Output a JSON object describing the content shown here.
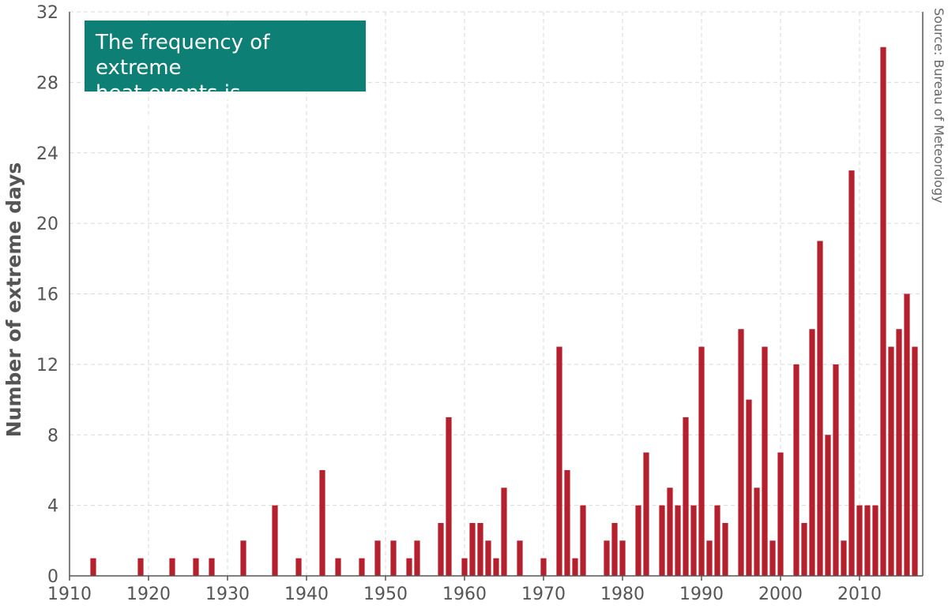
{
  "chart_data": {
    "type": "bar",
    "ylabel": "Number of extreme days",
    "xlabel": "",
    "ylim": [
      0,
      32
    ],
    "xlim": [
      1910,
      2017
    ],
    "y_ticks": [
      "0",
      "4",
      "8",
      "12",
      "16",
      "20",
      "24",
      "28",
      "32"
    ],
    "x_ticks": [
      "1910",
      "1920",
      "1930",
      "1940",
      "1950",
      "1960",
      "1970",
      "1980",
      "1990",
      "2000",
      "2010"
    ],
    "grid": true,
    "bar_color": "#b5202f",
    "callout": [
      "The frequency of extreme",
      "heat events is increasing."
    ],
    "callout_color": "#0e7f74",
    "source": "Source: Bureau of Meteorology",
    "points": [
      {
        "x": 1913,
        "y": 1
      },
      {
        "x": 1919,
        "y": 1
      },
      {
        "x": 1923,
        "y": 1
      },
      {
        "x": 1926,
        "y": 1
      },
      {
        "x": 1928,
        "y": 1
      },
      {
        "x": 1932,
        "y": 2
      },
      {
        "x": 1936,
        "y": 4
      },
      {
        "x": 1939,
        "y": 1
      },
      {
        "x": 1942,
        "y": 6
      },
      {
        "x": 1944,
        "y": 1
      },
      {
        "x": 1947,
        "y": 1
      },
      {
        "x": 1949,
        "y": 2
      },
      {
        "x": 1951,
        "y": 2
      },
      {
        "x": 1953,
        "y": 1
      },
      {
        "x": 1954,
        "y": 2
      },
      {
        "x": 1957,
        "y": 3
      },
      {
        "x": 1958,
        "y": 9
      },
      {
        "x": 1960,
        "y": 1
      },
      {
        "x": 1961,
        "y": 3
      },
      {
        "x": 1962,
        "y": 3
      },
      {
        "x": 1963,
        "y": 2
      },
      {
        "x": 1964,
        "y": 1
      },
      {
        "x": 1965,
        "y": 5
      },
      {
        "x": 1967,
        "y": 2
      },
      {
        "x": 1970,
        "y": 1
      },
      {
        "x": 1972,
        "y": 13
      },
      {
        "x": 1973,
        "y": 6
      },
      {
        "x": 1974,
        "y": 1
      },
      {
        "x": 1975,
        "y": 4
      },
      {
        "x": 1978,
        "y": 2
      },
      {
        "x": 1979,
        "y": 3
      },
      {
        "x": 1980,
        "y": 2
      },
      {
        "x": 1982,
        "y": 4
      },
      {
        "x": 1983,
        "y": 7
      },
      {
        "x": 1985,
        "y": 4
      },
      {
        "x": 1986,
        "y": 5
      },
      {
        "x": 1987,
        "y": 4
      },
      {
        "x": 1988,
        "y": 9
      },
      {
        "x": 1989,
        "y": 4
      },
      {
        "x": 1990,
        "y": 13
      },
      {
        "x": 1991,
        "y": 2
      },
      {
        "x": 1992,
        "y": 4
      },
      {
        "x": 1993,
        "y": 3
      },
      {
        "x": 1995,
        "y": 14
      },
      {
        "x": 1996,
        "y": 10
      },
      {
        "x": 1997,
        "y": 5
      },
      {
        "x": 1998,
        "y": 13
      },
      {
        "x": 1999,
        "y": 2
      },
      {
        "x": 2000,
        "y": 7
      },
      {
        "x": 2002,
        "y": 12
      },
      {
        "x": 2003,
        "y": 3
      },
      {
        "x": 2004,
        "y": 14
      },
      {
        "x": 2005,
        "y": 19
      },
      {
        "x": 2006,
        "y": 8
      },
      {
        "x": 2007,
        "y": 12
      },
      {
        "x": 2008,
        "y": 2
      },
      {
        "x": 2009,
        "y": 23
      },
      {
        "x": 2010,
        "y": 4
      },
      {
        "x": 2011,
        "y": 4
      },
      {
        "x": 2012,
        "y": 4
      },
      {
        "x": 2013,
        "y": 30
      },
      {
        "x": 2014,
        "y": 13
      },
      {
        "x": 2015,
        "y": 14
      },
      {
        "x": 2016,
        "y": 16
      },
      {
        "x": 2017,
        "y": 13
      }
    ]
  }
}
